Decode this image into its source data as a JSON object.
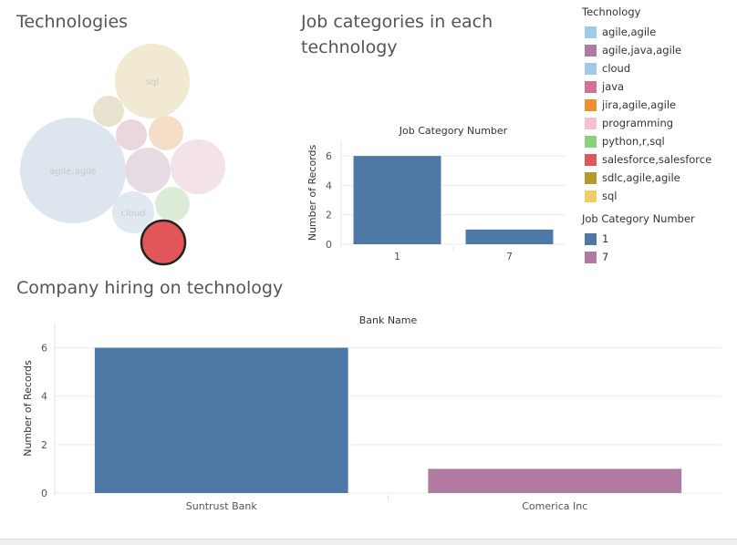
{
  "titles": {
    "technologies": "Technologies",
    "job_categories": "Job categories in each technology",
    "company": "Company hiring on technology"
  },
  "bubbles": [
    {
      "name": "sql",
      "label": "sql",
      "color": "#f2e9d2"
    },
    {
      "name": "agile-agile",
      "label": "agile,agile",
      "color": "#dde6ee"
    },
    {
      "name": "cloud",
      "label": "cloud",
      "color": "#e0e9ef"
    },
    {
      "name": "python-r-sql",
      "color": "#dcebd6"
    },
    {
      "name": "programming",
      "color": "#f3e3e8"
    },
    {
      "name": "agile-java-agile",
      "color": "#e6dbe2"
    },
    {
      "name": "java",
      "color": "#ecd6de"
    },
    {
      "name": "jira-agile-agile",
      "color": "#f5dcc7"
    },
    {
      "name": "sdlc-agile-agile",
      "color": "#e8e3d0"
    },
    {
      "name": "salesforce-salesforce",
      "color": "#e15759",
      "selected": true
    }
  ],
  "legend": {
    "technology_title": "Technology",
    "technology_items": [
      {
        "label": "agile,agile",
        "color": "#a0cbe8"
      },
      {
        "label": "agile,java,agile",
        "color": "#b07aa1"
      },
      {
        "label": "cloud",
        "color": "#a0cbe8"
      },
      {
        "label": "java",
        "color": "#d37295"
      },
      {
        "label": "jira,agile,agile",
        "color": "#f28e2b"
      },
      {
        "label": "programming",
        "color": "#fabfd2"
      },
      {
        "label": "python,r,sql",
        "color": "#8cd17d"
      },
      {
        "label": "salesforce,salesforce",
        "color": "#e15759"
      },
      {
        "label": "sdlc,agile,agile",
        "color": "#b6992d"
      },
      {
        "label": "sql",
        "color": "#f1ce63"
      }
    ],
    "job_category_title": "Job Category Number",
    "job_category_items": [
      {
        "label": "1",
        "color": "#4e79a7"
      },
      {
        "label": "7",
        "color": "#b07aa1"
      }
    ]
  },
  "chart_data": [
    {
      "type": "bar",
      "title": "Job Category Number",
      "categories": [
        "1",
        "7"
      ],
      "values": [
        6,
        1
      ],
      "colors": [
        "#4e79a7",
        "#4e79a7"
      ],
      "ylabel": "Number of Records",
      "xlabel": "",
      "ylim": [
        0,
        7
      ],
      "yticks": [
        0,
        2,
        4,
        6
      ],
      "grid": true
    },
    {
      "type": "bar",
      "title": "Bank Name",
      "categories": [
        "Suntrust Bank",
        "Comerica Inc"
      ],
      "values": [
        6,
        1
      ],
      "colors": [
        "#4e79a7",
        "#b07aa1"
      ],
      "ylabel": "Number of Records",
      "xlabel": "",
      "ylim": [
        0,
        7
      ],
      "yticks": [
        0,
        2,
        4,
        6
      ],
      "grid": true
    }
  ]
}
